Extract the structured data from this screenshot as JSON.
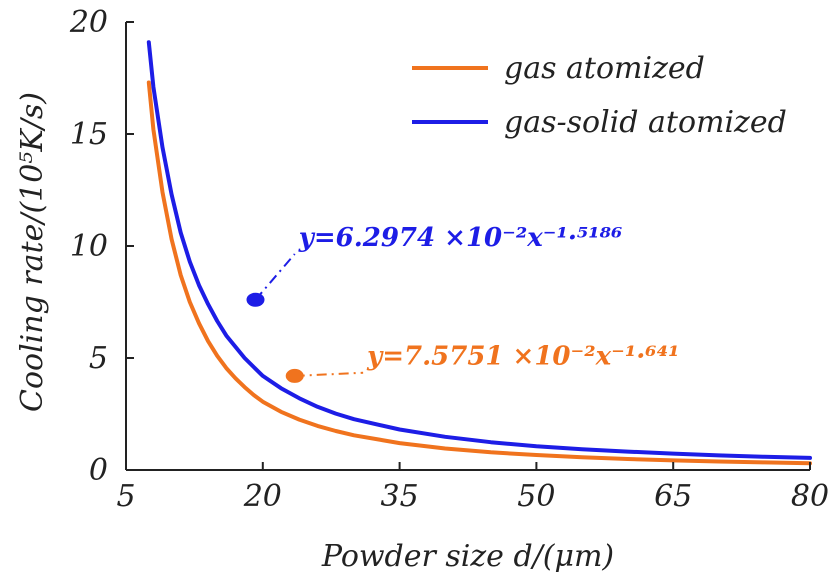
{
  "chart_data": {
    "type": "line",
    "xlabel": "Powder size d/(μm)",
    "ylabel": "Cooling rate/(10⁵K/s)",
    "xlim": [
      5,
      80
    ],
    "ylim": [
      0,
      20
    ],
    "xticks": [
      "5",
      "20",
      "35",
      "50",
      "65",
      "80"
    ],
    "yticks": [
      "0",
      "5",
      "10",
      "15",
      "20"
    ],
    "grid": false,
    "legend_position": "top-right",
    "series": [
      {
        "name": "gas atomized",
        "color": "#f0731e",
        "x": [
          7.5,
          8,
          9,
          10,
          11,
          12,
          13,
          14,
          15,
          16,
          17,
          18,
          19,
          20,
          22,
          24,
          26,
          28,
          30,
          35,
          40,
          45,
          50,
          55,
          60,
          65,
          70,
          75,
          80
        ],
        "y": [
          17.3,
          15.2,
          12.4,
          10.3,
          8.7,
          7.5,
          6.55,
          5.75,
          5.1,
          4.55,
          4.1,
          3.7,
          3.35,
          3.05,
          2.6,
          2.25,
          1.97,
          1.74,
          1.55,
          1.2,
          0.96,
          0.79,
          0.67,
          0.57,
          0.49,
          0.43,
          0.38,
          0.34,
          0.3
        ]
      },
      {
        "name": "gas-solid atomized",
        "color": "#1d1de6",
        "x": [
          7.5,
          8,
          9,
          10,
          11,
          12,
          13,
          14,
          15,
          16,
          17,
          18,
          19,
          20,
          22,
          24,
          26,
          28,
          30,
          35,
          40,
          45,
          50,
          55,
          60,
          65,
          70,
          75,
          80
        ],
        "y": [
          19.1,
          17.1,
          14.4,
          12.3,
          10.6,
          9.3,
          8.25,
          7.4,
          6.65,
          6.0,
          5.5,
          5.0,
          4.6,
          4.2,
          3.65,
          3.2,
          2.82,
          2.52,
          2.27,
          1.81,
          1.48,
          1.24,
          1.06,
          0.93,
          0.82,
          0.73,
          0.65,
          0.59,
          0.54
        ]
      }
    ],
    "annotations": [
      {
        "name": "gas-solid-fit",
        "text": "y=6.2974 ×10⁻²x⁻¹·⁵¹⁸⁶",
        "color": "#1d1de6",
        "point": [
          19.2,
          7.6
        ],
        "label_anchor": [
          23.5,
          10.0
        ]
      },
      {
        "name": "gas-fit",
        "text": "y=7.5751 ×10⁻²x⁻¹·⁶⁴¹",
        "color": "#f0731e",
        "point": [
          23.5,
          4.2
        ],
        "label_anchor": [
          31.0,
          4.7
        ]
      }
    ]
  }
}
